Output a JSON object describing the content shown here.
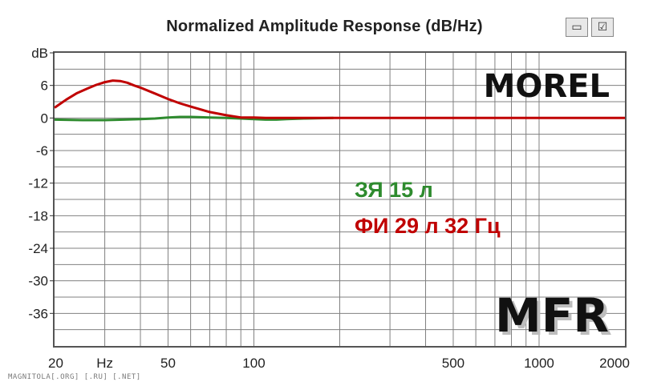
{
  "chart_data": {
    "type": "line",
    "title": "Normalized Amplitude Response (dB/Hz)",
    "ylabel": "dB",
    "xlabel": "Hz",
    "xscale": "log",
    "xlim": [
      20,
      2000
    ],
    "ylim": [
      -42,
      12
    ],
    "grid": true,
    "x_ticks": [
      {
        "value": 20,
        "label": "20"
      },
      {
        "value": 50,
        "label": "50"
      },
      {
        "value": 100,
        "label": "100"
      },
      {
        "value": 500,
        "label": "500"
      },
      {
        "value": 1000,
        "label": "1000"
      },
      {
        "value": 2000,
        "label": "2000"
      }
    ],
    "x_unit_tick": {
      "value": 30,
      "label": "Hz"
    },
    "y_ticks": [
      {
        "value": 6,
        "label": "6"
      },
      {
        "value": 0,
        "label": "0"
      },
      {
        "value": -6,
        "label": "-6"
      },
      {
        "value": -12,
        "label": "-12"
      },
      {
        "value": -18,
        "label": "-18"
      },
      {
        "value": -24,
        "label": "-24"
      },
      {
        "value": -30,
        "label": "-30"
      },
      {
        "value": -36,
        "label": "-36"
      }
    ],
    "y_unit_label": {
      "value": 12,
      "label": "dB"
    },
    "series": [
      {
        "name": "ФИ 29 л 32 Гц",
        "color": "#c00000",
        "x": [
          20,
          22,
          24,
          26,
          28,
          30,
          32,
          34,
          36,
          38,
          40,
          45,
          50,
          55,
          60,
          70,
          80,
          90,
          100,
          110,
          150,
          200,
          500,
          1000,
          2000
        ],
        "y": [
          1.9,
          3.4,
          4.6,
          5.4,
          6.1,
          6.6,
          6.9,
          6.8,
          6.5,
          6.0,
          5.6,
          4.5,
          3.5,
          2.7,
          2.1,
          1.1,
          0.5,
          0.1,
          0.1,
          0.0,
          0.0,
          0.0,
          0.0,
          0.0,
          0.0
        ]
      },
      {
        "name": "ЗЯ 15 л",
        "color": "#2e8b2e",
        "x": [
          20,
          25,
          30,
          35,
          40,
          45,
          50,
          55,
          60,
          70,
          80,
          90,
          100,
          110,
          120,
          130,
          150,
          190
        ],
        "y": [
          -0.3,
          -0.4,
          -0.4,
          -0.3,
          -0.2,
          -0.1,
          0.1,
          0.2,
          0.2,
          0.1,
          0.0,
          -0.1,
          -0.2,
          -0.3,
          -0.3,
          -0.2,
          -0.1,
          0.0
        ]
      }
    ],
    "annotations": [
      {
        "text": "MOREL",
        "color": "#111111"
      },
      {
        "text": "ЗЯ 15 л",
        "color": "#2e8b2e"
      },
      {
        "text": "ФИ 29 л 32 Гц",
        "color": "#c00000"
      },
      {
        "text": "MFR",
        "color": "#111111"
      }
    ]
  },
  "toolbar": {
    "icon1": "graph-window-icon",
    "icon2": "checklist-icon"
  },
  "watermark": "MAGNITOLA[.ORG] [.RU] [.NET]"
}
